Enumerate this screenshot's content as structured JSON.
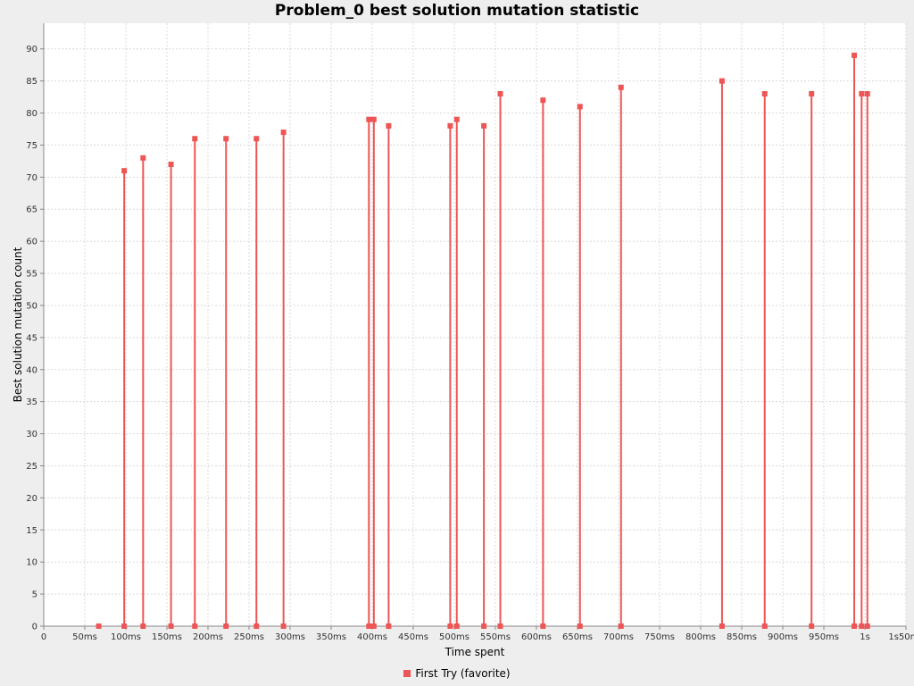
{
  "chart_data": {
    "type": "scatter",
    "title": "Problem_0 best solution mutation statistic",
    "xlabel": "Time spent",
    "ylabel": "Best solution mutation count",
    "xlim": [
      0,
      1050
    ],
    "ylim": [
      0,
      94
    ],
    "x_ticks": [
      0,
      50,
      100,
      150,
      200,
      250,
      300,
      350,
      400,
      450,
      500,
      550,
      600,
      650,
      700,
      750,
      800,
      850,
      900,
      950,
      1000,
      1050
    ],
    "x_tick_labels": [
      "0",
      "50ms",
      "100ms",
      "150ms",
      "200ms",
      "250ms",
      "300ms",
      "350ms",
      "400ms",
      "450ms",
      "500ms",
      "550ms",
      "600ms",
      "650ms",
      "700ms",
      "750ms",
      "800ms",
      "850ms",
      "900ms",
      "950ms",
      "1s",
      "1s50ms"
    ],
    "y_ticks": [
      0,
      5,
      10,
      15,
      20,
      25,
      30,
      35,
      40,
      45,
      50,
      55,
      60,
      65,
      70,
      75,
      80,
      85,
      90
    ],
    "grid": true,
    "legend_position": "bottom",
    "series": [
      {
        "name": "First Try (favorite)",
        "color": "#ee5555",
        "style": "impulse",
        "x": [
          67,
          98,
          121,
          155,
          184,
          222,
          259,
          292,
          396,
          402,
          420,
          495,
          503,
          536,
          556,
          608,
          653,
          703,
          826,
          878,
          935,
          987,
          996,
          1003
        ],
        "y": [
          0,
          71,
          73,
          72,
          76,
          76,
          76,
          77,
          79,
          79,
          78,
          78,
          79,
          78,
          83,
          82,
          81,
          84,
          85,
          83,
          83,
          89,
          83,
          83
        ]
      }
    ]
  }
}
